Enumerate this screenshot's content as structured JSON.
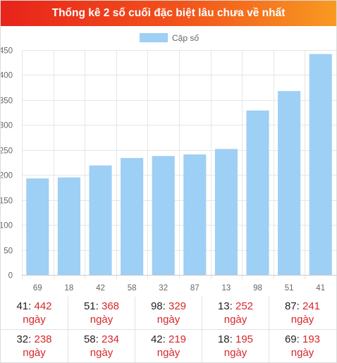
{
  "header": {
    "title": "Thống kê 2 số cuối đặc biệt lâu chưa về nhất"
  },
  "colors": {
    "bar": "#9ecff5",
    "value_text": "#d8262a",
    "grid_line": "#e6e6e6",
    "axis_text": "#666666"
  },
  "chart_data": {
    "type": "bar",
    "title": "",
    "xlabel": "",
    "ylabel": "",
    "legend": {
      "position": "top",
      "entries": [
        "Cặp số"
      ]
    },
    "categories": [
      "69",
      "18",
      "42",
      "58",
      "32",
      "87",
      "13",
      "98",
      "51",
      "41"
    ],
    "series": [
      {
        "name": "Cặp số",
        "values": [
          193,
          195,
          219,
          234,
          238,
          241,
          252,
          329,
          368,
          442
        ]
      }
    ],
    "ylim": [
      0,
      450
    ],
    "yticks": [
      "0",
      "50",
      "100",
      "150",
      "200",
      "250",
      "300",
      "350",
      "400",
      "450"
    ],
    "grid": true
  },
  "table": {
    "unit": "ngày",
    "rows": [
      [
        {
          "number": "41",
          "value": "442"
        },
        {
          "number": "51",
          "value": "368"
        },
        {
          "number": "98",
          "value": "329"
        },
        {
          "number": "13",
          "value": "252"
        },
        {
          "number": "87",
          "value": "241"
        }
      ],
      [
        {
          "number": "32",
          "value": "238"
        },
        {
          "number": "58",
          "value": "234"
        },
        {
          "number": "42",
          "value": "219"
        },
        {
          "number": "18",
          "value": "195"
        },
        {
          "number": "69",
          "value": "193"
        }
      ]
    ]
  }
}
